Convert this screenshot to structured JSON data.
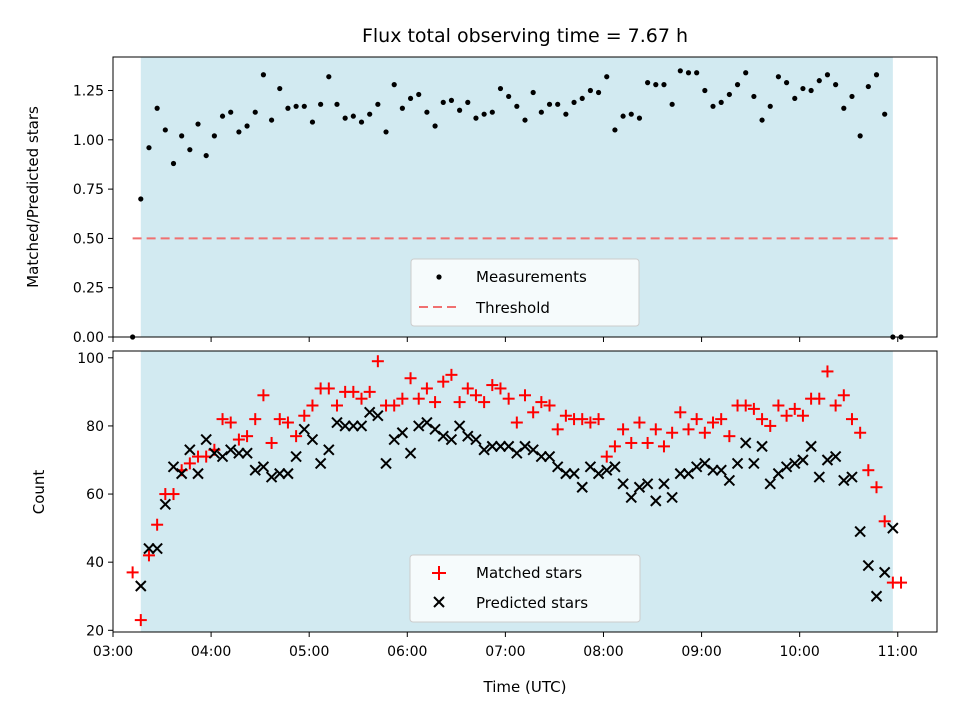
{
  "chart_data": [
    {
      "type": "scatter",
      "title": "Flux total observing time = 7.67 h",
      "ylabel": "Matched/Predicted stars",
      "xlabel": "",
      "xlim": [
        "03:00",
        "11:24"
      ],
      "ylim": [
        0,
        1.42
      ],
      "yticks": [
        "0.00",
        "0.25",
        "0.50",
        "0.75",
        "1.00",
        "1.25"
      ],
      "observing_window": [
        "03:17",
        "10:57"
      ],
      "threshold": {
        "name": "Threshold",
        "y": 0.5,
        "x": [
          "03:12",
          "11:02"
        ],
        "color": "#f07070"
      },
      "legend": {
        "position": "lower-center",
        "entries": [
          "Measurements",
          "Threshold"
        ]
      },
      "series": [
        {
          "name": "Measurements",
          "color": "#000000",
          "x": [
            "03:12",
            "03:17",
            "03:22",
            "03:27",
            "03:32",
            "03:37",
            "03:42",
            "03:47",
            "03:52",
            "03:57",
            "04:02",
            "04:07",
            "04:12",
            "04:17",
            "04:22",
            "04:27",
            "04:32",
            "04:37",
            "04:42",
            "04:47",
            "04:52",
            "04:57",
            "05:02",
            "05:07",
            "05:12",
            "05:17",
            "05:22",
            "05:27",
            "05:32",
            "05:37",
            "05:42",
            "05:47",
            "05:52",
            "05:57",
            "06:02",
            "06:07",
            "06:12",
            "06:17",
            "06:22",
            "06:27",
            "06:32",
            "06:37",
            "06:42",
            "06:47",
            "06:52",
            "06:57",
            "07:02",
            "07:07",
            "07:12",
            "07:17",
            "07:22",
            "07:27",
            "07:32",
            "07:37",
            "07:42",
            "07:47",
            "07:52",
            "07:57",
            "08:02",
            "08:07",
            "08:12",
            "08:17",
            "08:22",
            "08:27",
            "08:32",
            "08:37",
            "08:42",
            "08:47",
            "08:52",
            "08:57",
            "09:02",
            "09:07",
            "09:12",
            "09:17",
            "09:22",
            "09:27",
            "09:32",
            "09:37",
            "09:42",
            "09:47",
            "09:52",
            "09:57",
            "10:02",
            "10:07",
            "10:12",
            "10:17",
            "10:22",
            "10:27",
            "10:32",
            "10:37",
            "10:42",
            "10:47",
            "10:52",
            "10:57",
            "11:02"
          ],
          "y": [
            0.0,
            0.7,
            0.96,
            1.16,
            1.05,
            0.88,
            1.02,
            0.95,
            1.08,
            0.92,
            1.02,
            1.12,
            1.14,
            1.04,
            1.07,
            1.14,
            1.33,
            1.1,
            1.26,
            1.16,
            1.17,
            1.17,
            1.09,
            1.18,
            1.32,
            1.18,
            1.11,
            1.12,
            1.09,
            1.13,
            1.18,
            1.04,
            1.28,
            1.16,
            1.21,
            1.23,
            1.14,
            1.07,
            1.19,
            1.2,
            1.15,
            1.19,
            1.11,
            1.13,
            1.14,
            1.26,
            1.22,
            1.17,
            1.1,
            1.24,
            1.14,
            1.18,
            1.18,
            1.13,
            1.19,
            1.21,
            1.25,
            1.24,
            1.32,
            1.05,
            1.12,
            1.13,
            1.11,
            1.29,
            1.28,
            1.28,
            1.18,
            1.35,
            1.34,
            1.34,
            1.25,
            1.17,
            1.19,
            1.23,
            1.28,
            1.34,
            1.22,
            1.1,
            1.17,
            1.32,
            1.29,
            1.21,
            1.26,
            1.25,
            1.3,
            1.33,
            1.28,
            1.16,
            1.22,
            1.02,
            1.27,
            1.33,
            1.13,
            0.0,
            0.0
          ]
        }
      ]
    },
    {
      "type": "scatter",
      "title": "",
      "ylabel": "Count",
      "xlabel": "Time (UTC)",
      "xlim": [
        "03:00",
        "11:24"
      ],
      "ylim": [
        19.5,
        102
      ],
      "yticks": [
        "20",
        "40",
        "60",
        "80",
        "100"
      ],
      "xticks": [
        "03:00",
        "04:00",
        "05:00",
        "06:00",
        "07:00",
        "08:00",
        "09:00",
        "10:00",
        "11:00"
      ],
      "observing_window": [
        "03:17",
        "10:57"
      ],
      "legend": {
        "position": "lower-center",
        "entries": [
          "Matched stars",
          "Predicted stars"
        ]
      },
      "series": [
        {
          "name": "Matched stars",
          "color": "#ff0000",
          "marker": "plus",
          "x": [
            "03:12",
            "03:17",
            "03:22",
            "03:27",
            "03:32",
            "03:37",
            "03:42",
            "03:47",
            "03:52",
            "03:57",
            "04:02",
            "04:07",
            "04:12",
            "04:17",
            "04:22",
            "04:27",
            "04:32",
            "04:37",
            "04:42",
            "04:47",
            "04:52",
            "04:57",
            "05:02",
            "05:07",
            "05:12",
            "05:17",
            "05:22",
            "05:27",
            "05:32",
            "05:37",
            "05:42",
            "05:47",
            "05:52",
            "05:57",
            "06:02",
            "06:07",
            "06:12",
            "06:17",
            "06:22",
            "06:27",
            "06:32",
            "06:37",
            "06:42",
            "06:47",
            "06:52",
            "06:57",
            "07:02",
            "07:07",
            "07:12",
            "07:17",
            "07:22",
            "07:27",
            "07:32",
            "07:37",
            "07:42",
            "07:47",
            "07:52",
            "07:57",
            "08:02",
            "08:07",
            "08:12",
            "08:17",
            "08:22",
            "08:27",
            "08:32",
            "08:37",
            "08:42",
            "08:47",
            "08:52",
            "08:57",
            "09:02",
            "09:07",
            "09:12",
            "09:17",
            "09:22",
            "09:27",
            "09:32",
            "09:37",
            "09:42",
            "09:47",
            "09:52",
            "09:57",
            "10:02",
            "10:07",
            "10:12",
            "10:17",
            "10:22",
            "10:27",
            "10:32",
            "10:37",
            "10:42",
            "10:47",
            "10:52",
            "10:57",
            "11:02"
          ],
          "y": [
            37,
            23,
            42,
            51,
            60,
            60,
            67,
            69,
            71,
            71,
            73,
            82,
            81,
            76,
            77,
            82,
            89,
            75,
            82,
            81,
            77,
            83,
            86,
            91,
            91,
            86,
            90,
            90,
            88,
            90,
            99,
            86,
            86,
            88,
            94,
            88,
            91,
            87,
            93,
            95,
            87,
            91,
            89,
            87,
            92,
            91,
            88,
            81,
            89,
            84,
            87,
            86,
            79,
            83,
            82,
            82,
            81,
            82,
            71,
            74,
            79,
            75,
            81,
            75,
            79,
            74,
            78,
            84,
            79,
            82,
            78,
            81,
            82,
            77,
            86,
            86,
            85,
            82,
            80,
            86,
            83,
            85,
            83,
            88,
            88,
            96,
            86,
            89,
            82,
            78,
            67,
            62,
            52,
            34,
            34
          ]
        },
        {
          "name": "Predicted stars",
          "color": "#000000",
          "marker": "x",
          "x": [
            "03:17",
            "03:22",
            "03:27",
            "03:32",
            "03:37",
            "03:42",
            "03:47",
            "03:52",
            "03:57",
            "04:02",
            "04:07",
            "04:12",
            "04:17",
            "04:22",
            "04:27",
            "04:32",
            "04:37",
            "04:42",
            "04:47",
            "04:52",
            "04:57",
            "05:02",
            "05:07",
            "05:12",
            "05:17",
            "05:22",
            "05:27",
            "05:32",
            "05:37",
            "05:42",
            "05:47",
            "05:52",
            "05:57",
            "06:02",
            "06:07",
            "06:12",
            "06:17",
            "06:22",
            "06:27",
            "06:32",
            "06:37",
            "06:42",
            "06:47",
            "06:52",
            "06:57",
            "07:02",
            "07:07",
            "07:12",
            "07:17",
            "07:22",
            "07:27",
            "07:32",
            "07:37",
            "07:42",
            "07:47",
            "07:52",
            "07:57",
            "08:02",
            "08:07",
            "08:12",
            "08:17",
            "08:22",
            "08:27",
            "08:32",
            "08:37",
            "08:42",
            "08:47",
            "08:52",
            "08:57",
            "09:02",
            "09:07",
            "09:12",
            "09:17",
            "09:22",
            "09:27",
            "09:32",
            "09:37",
            "09:42",
            "09:47",
            "09:52",
            "09:57",
            "10:02",
            "10:07",
            "10:12",
            "10:17",
            "10:22",
            "10:27",
            "10:32",
            "10:37",
            "10:42",
            "10:47",
            "10:52",
            "10:57"
          ],
          "y": [
            33,
            44,
            44,
            57,
            68,
            66,
            73,
            66,
            76,
            72,
            71,
            73,
            72,
            72,
            67,
            68,
            65,
            66,
            66,
            71,
            79,
            76,
            69,
            73,
            81,
            80,
            80,
            80,
            84,
            83,
            69,
            76,
            78,
            72,
            80,
            81,
            79,
            77,
            76,
            80,
            77,
            76,
            73,
            74,
            74,
            74,
            72,
            74,
            73,
            71,
            71,
            68,
            66,
            66,
            62,
            68,
            66,
            67,
            68,
            63,
            59,
            62,
            63,
            58,
            63,
            59,
            66,
            66,
            68,
            69,
            67,
            67,
            64,
            69,
            75,
            69,
            74,
            63,
            66,
            68,
            69,
            70,
            74,
            65,
            70,
            71,
            64,
            65,
            49,
            39,
            30,
            37,
            50
          ]
        }
      ]
    }
  ]
}
